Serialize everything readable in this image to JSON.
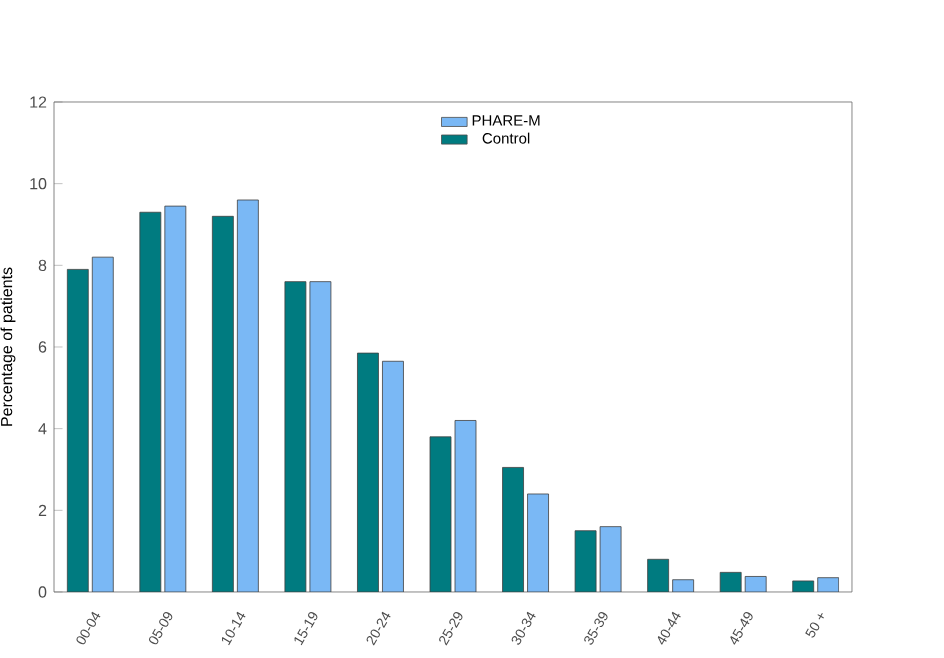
{
  "chart_data": {
    "type": "bar",
    "ylabel": "Percentage of patients",
    "categories": [
      "00-04",
      "05-09",
      "10-14",
      "15-19",
      "20-24",
      "25-29",
      "30-34",
      "35-39",
      "40-44",
      "45-49",
      "50 +"
    ],
    "series": [
      {
        "name": "Control",
        "color": "#007b80",
        "values": [
          7.9,
          9.3,
          9.2,
          7.6,
          5.85,
          3.8,
          3.05,
          1.5,
          0.8,
          0.48,
          0.27
        ]
      },
      {
        "name": "PHARE-M",
        "color": "#7ab8f5",
        "values": [
          8.2,
          9.45,
          9.6,
          7.6,
          5.65,
          4.2,
          2.4,
          1.6,
          0.3,
          0.38,
          0.35
        ]
      }
    ],
    "ylim": [
      0,
      12
    ],
    "yticks": [
      0,
      2,
      4,
      6,
      8,
      10,
      12
    ],
    "grid": false,
    "legend": "top"
  }
}
